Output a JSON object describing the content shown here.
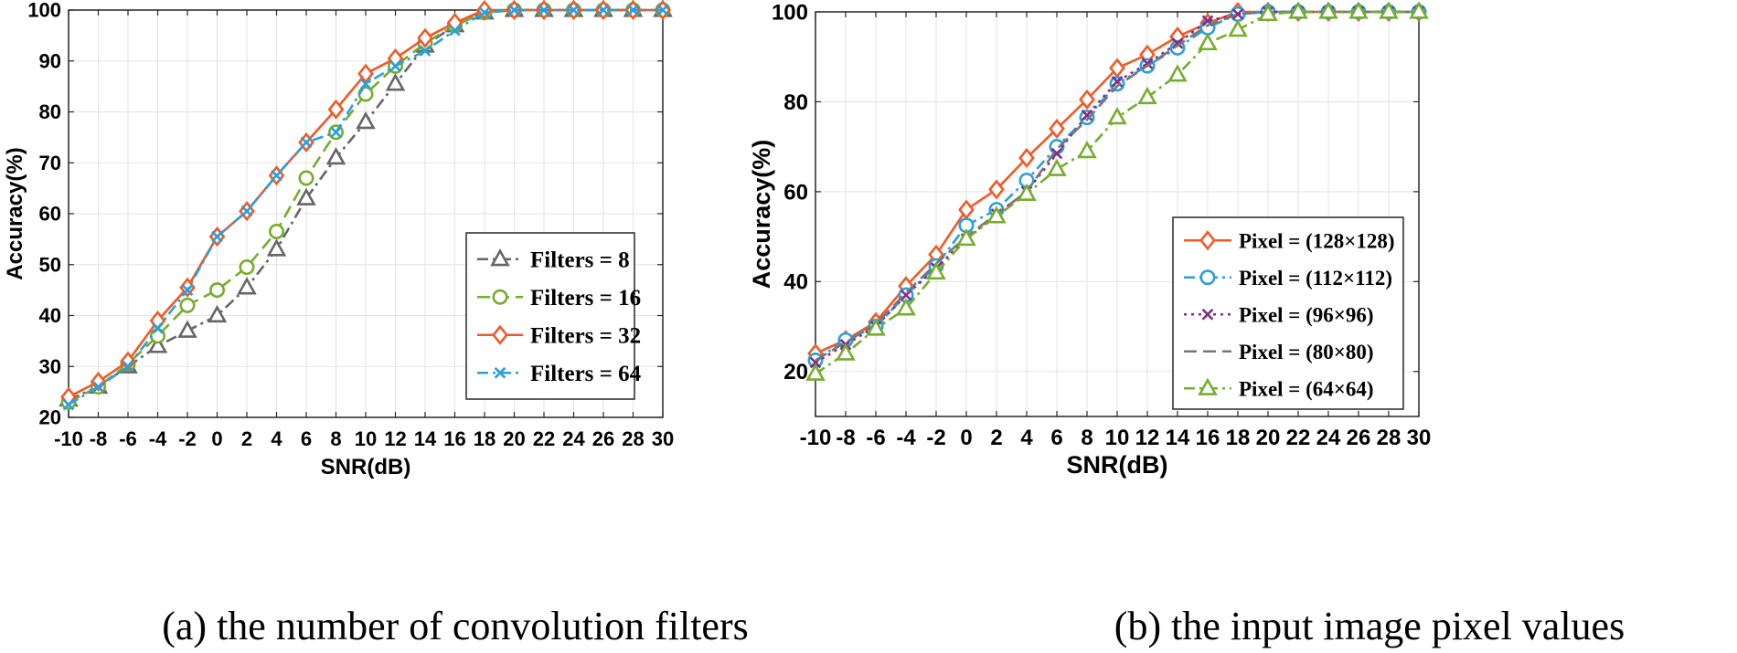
{
  "chart_data": [
    {
      "type": "line",
      "caption": "(a) the number of convolution filters",
      "xlabel": "SNR(dB)",
      "ylabel": "Accuracy(%)",
      "x": [
        -10,
        -8,
        -6,
        -4,
        -2,
        0,
        2,
        4,
        6,
        8,
        10,
        12,
        14,
        16,
        18,
        20,
        22,
        24,
        26,
        28,
        30
      ],
      "xlim": [
        -10,
        30
      ],
      "ylim": [
        20,
        100
      ],
      "xticks": [
        "-10",
        "-8",
        "-6",
        "-4",
        "-2",
        "0",
        "2",
        "4",
        "6",
        "8",
        "10",
        "12",
        "14",
        "16",
        "18",
        "20",
        "22",
        "24",
        "26",
        "28",
        "30"
      ],
      "yticks": [
        "20",
        "30",
        "40",
        "50",
        "60",
        "70",
        "80",
        "90",
        "100"
      ],
      "grid": true,
      "legend_position": "bottom-right",
      "series": [
        {
          "name": "Filters = 8",
          "color": "#666666",
          "marker": "triangle",
          "dash": "dashdot",
          "values": [
            23.5,
            26,
            30,
            34,
            37,
            40,
            45.5,
            53,
            63,
            71,
            78,
            85.5,
            93,
            97,
            99.5,
            100,
            100,
            100,
            100,
            100,
            100
          ]
        },
        {
          "name": "Filters = 16",
          "color": "#77AC30",
          "marker": "circle",
          "dash": "dashed",
          "values": [
            23,
            26,
            30.5,
            36,
            42,
            45,
            49.5,
            56.5,
            67,
            76,
            83.5,
            89,
            93.5,
            97,
            99.5,
            100,
            100,
            100,
            100,
            100,
            100
          ]
        },
        {
          "name": "Filters = 32",
          "color": "#F05A28",
          "marker": "diamond",
          "dash": "solid",
          "values": [
            24,
            27,
            31,
            39,
            45.5,
            55.5,
            60.5,
            67.5,
            74,
            80.5,
            87.5,
            90.5,
            94.5,
            97.5,
            100,
            100,
            100,
            100,
            100,
            100,
            100
          ]
        },
        {
          "name": "Filters = 64",
          "color": "#2C9FD9",
          "marker": "x",
          "dash": "dashdot",
          "values": [
            22.5,
            26,
            30,
            37.5,
            45,
            55.5,
            60.5,
            67.5,
            74,
            76,
            85.5,
            89,
            92,
            96,
            99.5,
            100,
            100,
            100,
            100,
            100,
            100
          ]
        }
      ]
    },
    {
      "type": "line",
      "caption": "(b) the input image pixel values",
      "xlabel": "SNR(dB)",
      "ylabel": "Accuracy(%)",
      "x": [
        -10,
        -8,
        -6,
        -4,
        -2,
        0,
        2,
        4,
        6,
        8,
        10,
        12,
        14,
        16,
        18,
        20,
        22,
        24,
        26,
        28,
        30
      ],
      "xlim": [
        -10,
        30
      ],
      "ylim": [
        10,
        100
      ],
      "xticks": [
        "-10",
        "-8",
        "-6",
        "-4",
        "-2",
        "0",
        "2",
        "4",
        "6",
        "8",
        "10",
        "12",
        "14",
        "16",
        "18",
        "20",
        "22",
        "24",
        "26",
        "28",
        "30"
      ],
      "yticks": [
        "20",
        "40",
        "60",
        "80",
        "100"
      ],
      "grid": true,
      "legend_position": "bottom-right",
      "series": [
        {
          "name": "Pixel = (128×128)",
          "color": "#F05A28",
          "marker": "diamond",
          "dash": "solid",
          "values": [
            24,
            27,
            31,
            39,
            46,
            56,
            60.5,
            67.5,
            74,
            80.5,
            87.5,
            90.5,
            94.5,
            97.5,
            100,
            100,
            100,
            100,
            100,
            100,
            100
          ]
        },
        {
          "name": "Pixel = (112×112)",
          "color": "#2C9FD9",
          "marker": "circle",
          "dash": "dashdot",
          "values": [
            22.5,
            27,
            30,
            37,
            43.5,
            52.5,
            56,
            62.5,
            70,
            76.5,
            84,
            88,
            92,
            96.5,
            99.5,
            100,
            100,
            100,
            100,
            100,
            100
          ]
        },
        {
          "name": "Pixel = (96×96)",
          "color": "#7E2F8E",
          "marker": "x",
          "dash": "dotted",
          "values": [
            22,
            26,
            30,
            37,
            43,
            49.5,
            55,
            60,
            68.5,
            77,
            84.5,
            88.5,
            93,
            98,
            99.5,
            100,
            100,
            100,
            100,
            100,
            100
          ]
        },
        {
          "name": "Pixel = (80×80)",
          "color": "#777777",
          "marker": "none",
          "dash": "dashed",
          "values": [
            22.5,
            26.5,
            30.5,
            37.5,
            44,
            50,
            55,
            60,
            69.5,
            76,
            83.5,
            88,
            92.5,
            97,
            99.5,
            100,
            100,
            100,
            100,
            100,
            100
          ]
        },
        {
          "name": "Pixel = (64×64)",
          "color": "#77AC30",
          "marker": "triangle",
          "dash": "dashdot",
          "values": [
            19.5,
            24,
            29.5,
            34,
            42,
            49.5,
            54.5,
            59.5,
            65,
            69,
            76.5,
            81,
            86,
            93,
            96,
            99.5,
            100,
            100,
            100,
            100,
            100
          ]
        }
      ]
    }
  ]
}
